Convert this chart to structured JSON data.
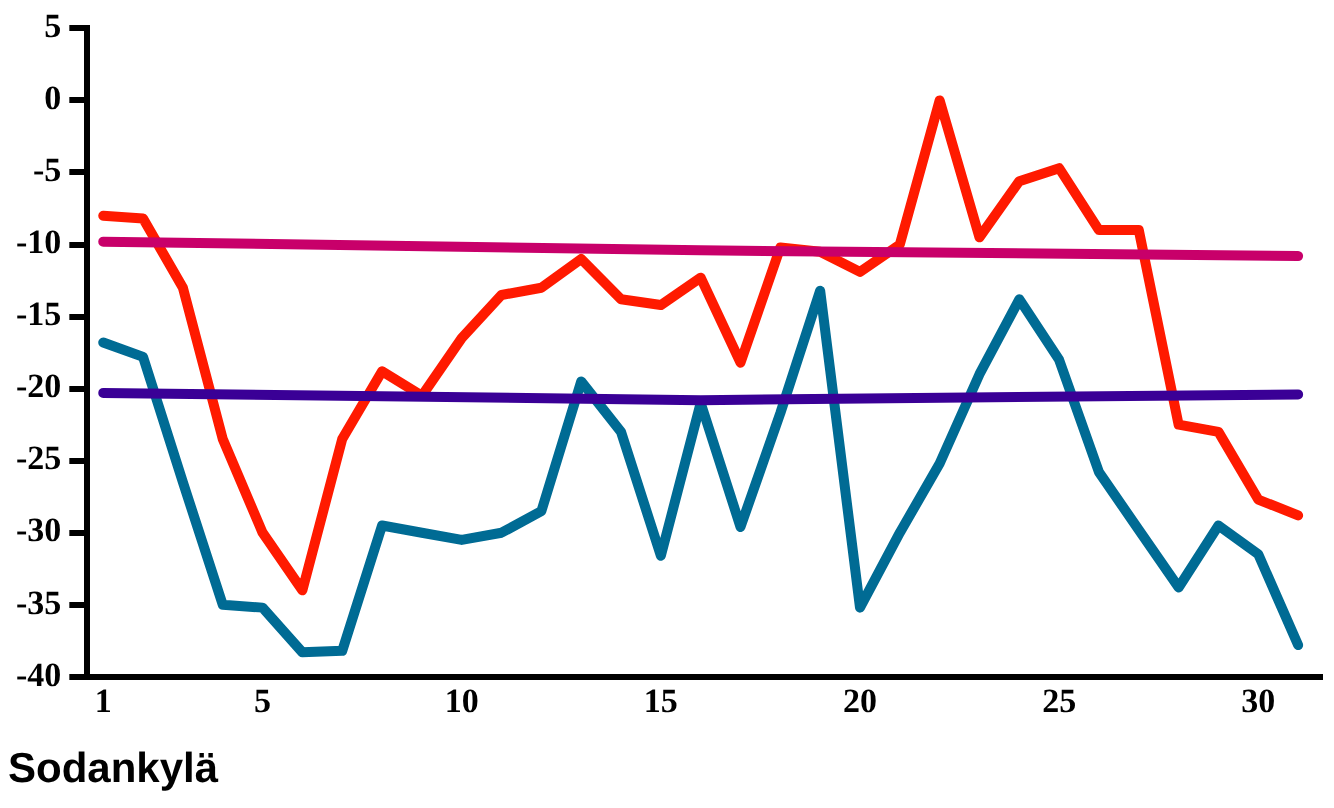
{
  "chart_data": {
    "type": "line",
    "title": "Sodankylä",
    "xlim": [
      0.6,
      31.6
    ],
    "xticks": [
      1,
      5,
      10,
      15,
      20,
      25,
      30
    ],
    "ylim": [
      -40,
      5
    ],
    "yticks": [
      -40,
      -35,
      -30,
      -25,
      -20,
      -15,
      -10,
      -5,
      0,
      5
    ],
    "grid": false,
    "legend": false,
    "marker": "none",
    "line_style": "solid",
    "x": [
      1,
      2,
      3,
      4,
      5,
      6,
      7,
      8,
      9,
      10,
      11,
      12,
      13,
      14,
      15,
      16,
      17,
      18,
      19,
      20,
      21,
      22,
      23,
      24,
      25,
      26,
      27,
      28,
      29,
      30,
      31
    ],
    "series": [
      {
        "color": "#c8006a",
        "x": [
          1,
          16,
          31
        ],
        "values": [
          -9.8,
          -10.4,
          -10.8
        ]
      },
      {
        "color": "#3a0096",
        "x": [
          1,
          16,
          31
        ],
        "values": [
          -20.3,
          -20.8,
          -20.4
        ]
      },
      {
        "color": "#ff1a00",
        "values": [
          -8,
          -8.2,
          -13,
          -23.5,
          -30,
          -34,
          -23.5,
          -18.8,
          -20.5,
          -16.5,
          -13.5,
          -13,
          -11,
          -13.8,
          -14.2,
          -12.3,
          -18.2,
          -10.2,
          -10.5,
          -11.9,
          -10,
          0,
          -9.5,
          -5.6,
          -4.7,
          -9,
          -9,
          -22.5,
          -23,
          -27.7,
          -28.8
        ]
      },
      {
        "color": "#006b94",
        "values": [
          -16.8,
          -17.8,
          -26.5,
          -35,
          -35.2,
          -38.3,
          -38.2,
          -29.5,
          -30,
          -30.5,
          -30,
          -28.5,
          -19.5,
          -23,
          -31.6,
          -21,
          -29.6,
          -21.7,
          -13.2,
          -35.2,
          -30,
          -25.2,
          -19,
          -13.8,
          -18,
          -25.8,
          -29.8,
          -33.8,
          -29.5,
          -31.5,
          -37.8
        ]
      }
    ]
  }
}
